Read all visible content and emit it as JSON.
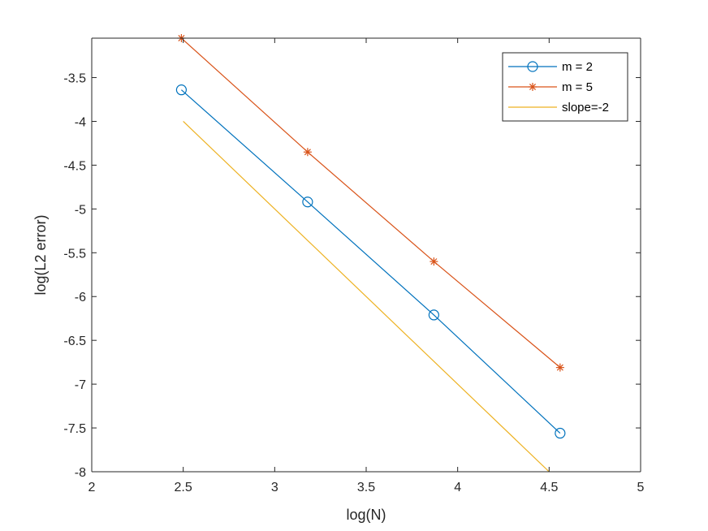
{
  "chart_data": {
    "type": "line",
    "title": "",
    "xlabel": "log(N)",
    "ylabel": "log(L2 error)",
    "xlim": [
      2,
      5
    ],
    "ylim": [
      -8,
      -3
    ],
    "xticks": [
      2,
      2.5,
      3,
      3.5,
      4,
      4.5,
      5
    ],
    "xtick_labels": [
      "2",
      "2.5",
      "3",
      "3.5",
      "4",
      "4.5",
      "5"
    ],
    "yticks": [
      -8,
      -7.5,
      -7,
      -6.5,
      -6,
      -5.5,
      -5,
      -4.5,
      -4,
      -3.5
    ],
    "ytick_labels": [
      "-8",
      "-7.5",
      "-7",
      "-6.5",
      "-6",
      "-5.5",
      "-5",
      "-4.5",
      "-4",
      "-3.5"
    ],
    "grid": false,
    "legend_position": "top-right",
    "series": [
      {
        "name": "m = 2",
        "color": "#0072BD",
        "marker": "circle",
        "x": [
          2.49,
          3.18,
          3.87,
          4.56
        ],
        "y": [
          -3.64,
          -4.92,
          -6.21,
          -7.56
        ]
      },
      {
        "name": "m = 5",
        "color": "#D95319",
        "marker": "asterisk",
        "x": [
          2.49,
          3.18,
          3.87,
          4.56
        ],
        "y": [
          -3.05,
          -4.35,
          -5.6,
          -6.81
        ]
      },
      {
        "name": "slope=-2",
        "color": "#EDB120",
        "marker": "none",
        "x": [
          2.5,
          4.5
        ],
        "y": [
          -4.0,
          -8.0
        ]
      }
    ]
  }
}
